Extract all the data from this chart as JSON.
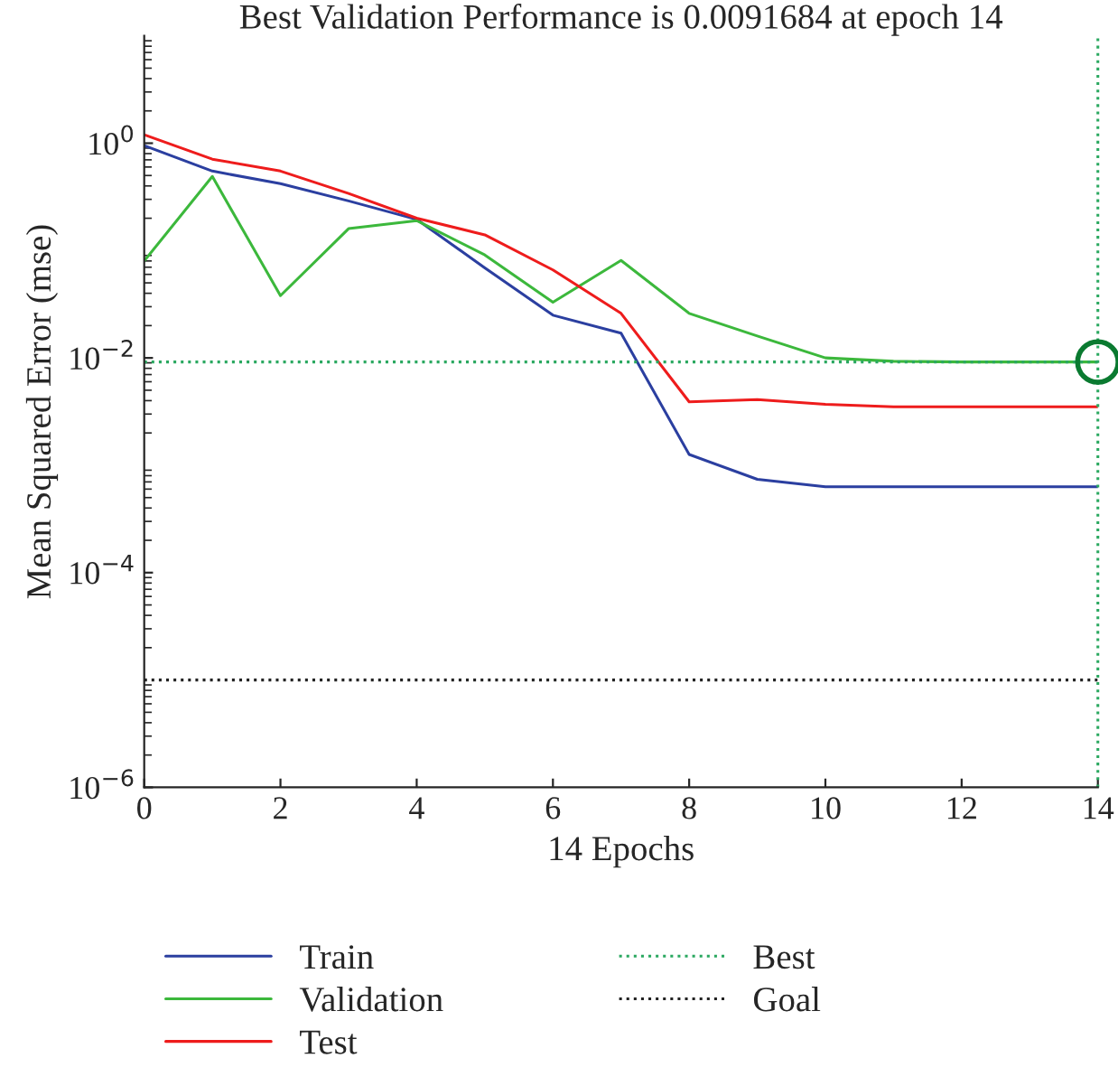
{
  "chart_data": {
    "type": "line",
    "title": "Best Validation Performance is 0.0091684 at epoch 14",
    "xlabel": "14 Epochs",
    "ylabel": "Mean Squared Error (mse)",
    "x": [
      0,
      1,
      2,
      3,
      4,
      5,
      6,
      7,
      8,
      9,
      10,
      11,
      12,
      13,
      14
    ],
    "series": [
      {
        "name": "Train",
        "color": "#2b3fa0",
        "values": [
          0.95,
          0.55,
          0.42,
          0.29,
          0.195,
          0.069,
          0.025,
          0.017,
          0.00126,
          0.00074,
          0.00063,
          0.00063,
          0.00063,
          0.00063,
          0.00063
        ]
      },
      {
        "name": "Validation",
        "color": "#3cb83c",
        "values": [
          0.08,
          0.49,
          0.038,
          0.16,
          0.19,
          0.091,
          0.033,
          0.081,
          0.026,
          0.016,
          0.01,
          0.0093,
          0.0091684,
          0.0091684,
          0.0091684
        ]
      },
      {
        "name": "Test",
        "color": "#ee1c1c",
        "values": [
          1.2,
          0.71,
          0.55,
          0.34,
          0.2,
          0.14,
          0.066,
          0.026,
          0.0039,
          0.0041,
          0.0037,
          0.0035,
          0.0035,
          0.0035,
          0.0035
        ]
      },
      {
        "type": "scatter",
        "x": [
          14
        ],
        "values": [
          0.0091684
        ],
        "color": "#0a7a30",
        "marker": "circle"
      }
    ],
    "ref_lines": [
      {
        "axis": "y",
        "value": 0.0091684,
        "label": "Best",
        "color": "#2aa860",
        "line_style": "dotted"
      },
      {
        "axis": "x",
        "value": 14,
        "color": "#2aa860",
        "line_style": "dotted"
      },
      {
        "axis": "y",
        "value": 1e-05,
        "label": "Goal",
        "color": "#222222",
        "line_style": "dotted"
      }
    ],
    "log": "y",
    "xlim": [
      0,
      14
    ],
    "xticks": [
      0,
      2,
      4,
      6,
      8,
      10,
      12,
      14
    ],
    "ylim": [
      1e-06,
      10
    ],
    "yticks": [
      {
        "value": 1,
        "label": "10$^{0}$"
      },
      {
        "value": 0.01,
        "label": "10$^{−2}$"
      },
      {
        "value": 0.0001,
        "label": "10$^{−4}$"
      },
      {
        "value": 1e-06,
        "label": "10$^{−6}$"
      }
    ],
    "grid": false,
    "legend": "bottom",
    "line_style": "solid"
  }
}
